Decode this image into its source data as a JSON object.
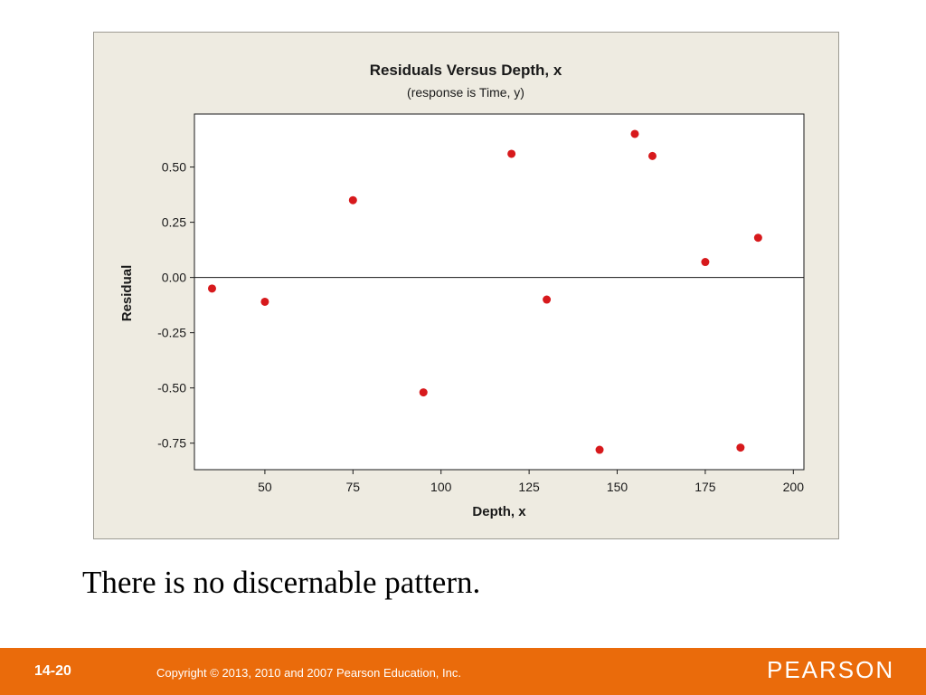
{
  "chart_data": {
    "type": "scatter",
    "title": "Residuals Versus Depth, x",
    "subtitle": "(response is Time, y)",
    "xlabel": "Depth, x",
    "ylabel": "Residual",
    "xlim": [
      30,
      203
    ],
    "ylim": [
      -0.87,
      0.74
    ],
    "xticks": [
      50,
      75,
      100,
      125,
      150,
      175,
      200
    ],
    "xtick_labels": [
      "50",
      "75",
      "100",
      "125",
      "150",
      "175",
      "200"
    ],
    "yticks": [
      0.5,
      0.25,
      0.0,
      -0.25,
      -0.5,
      -0.75
    ],
    "ytick_labels": [
      "0.50",
      "0.25",
      "0.00",
      "-0.25",
      "-0.50",
      "-0.75"
    ],
    "reference_line_y": 0,
    "grid": false,
    "marker_color": "#d7191c",
    "points": [
      {
        "x": 35,
        "y": -0.05
      },
      {
        "x": 50,
        "y": -0.11
      },
      {
        "x": 75,
        "y": 0.35
      },
      {
        "x": 95,
        "y": -0.52
      },
      {
        "x": 120,
        "y": 0.56
      },
      {
        "x": 130,
        "y": -0.1
      },
      {
        "x": 145,
        "y": -0.78
      },
      {
        "x": 155,
        "y": 0.65
      },
      {
        "x": 160,
        "y": 0.55
      },
      {
        "x": 175,
        "y": 0.07
      },
      {
        "x": 185,
        "y": -0.77
      },
      {
        "x": 190,
        "y": 0.18
      }
    ]
  },
  "caption": "There is no discernable pattern.",
  "footer": {
    "slide_number": "14-20",
    "copyright": "Copyright © 2013, 2010 and 2007 Pearson Education, Inc.",
    "brand": "PEARSON",
    "color": "#ea6b0b"
  }
}
